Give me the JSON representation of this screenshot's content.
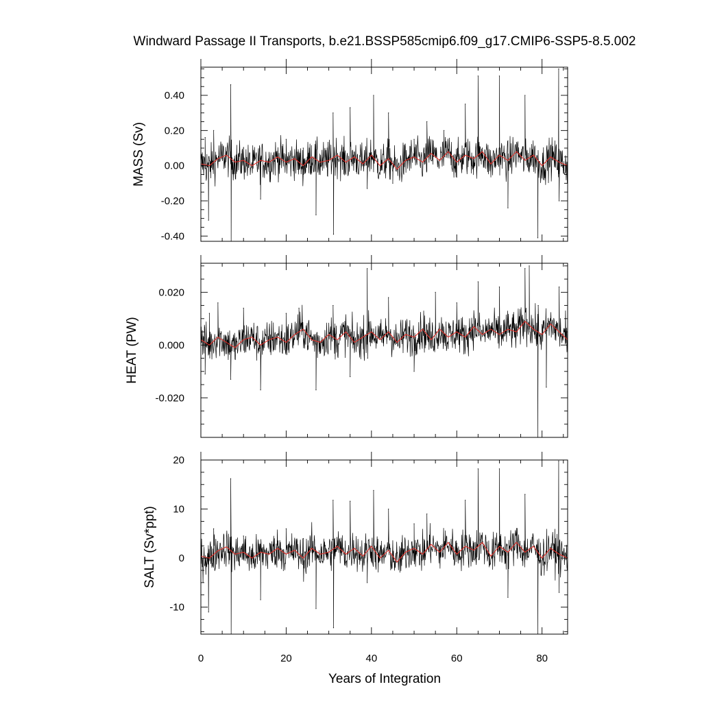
{
  "chart_data": {
    "type": "line",
    "title": "Windward Passage II Transports, b.e21.BSSP585cmip6.f09_g17.CMIP6-SSP5-8.5.002",
    "xlabel": "Years of Integration",
    "xlim": [
      0,
      86
    ],
    "x_ticks": [
      "0",
      "20",
      "40",
      "60",
      "80"
    ],
    "colors": {
      "raw": "#000000",
      "smoothed": "#e0302a",
      "frame": "#000000"
    },
    "grid": false,
    "panels": [
      {
        "ylabel": "MASS (Sv)",
        "ylim": [
          -0.43,
          0.56
        ],
        "y_ticks": [
          -0.4,
          -0.2,
          0.0,
          0.2,
          0.4
        ],
        "y_tick_labels": [
          "-0.40",
          "-0.20",
          "0.00",
          "0.20",
          "0.40"
        ],
        "series": [
          {
            "x": [
              0,
              1,
              1.8,
              3,
              5,
              7,
              7.1,
              10,
              14,
              20,
              24,
              27,
              31,
              31.1,
              35,
              39,
              40.5,
              44,
              45,
              50,
              53,
              57,
              60,
              62,
              65,
              66,
              70,
              72,
              76,
              79,
              83.9,
              84,
              86
            ],
            "y": [
              0.02,
              0.16,
              -0.31,
              0.2,
              0.05,
              0.46,
              -0.43,
              0.1,
              -0.19,
              0.15,
              0.1,
              -0.28,
              0.3,
              -0.39,
              0.33,
              -0.13,
              0.4,
              0.3,
              -0.1,
              0.15,
              0.25,
              0.2,
              0.05,
              0.35,
              0.51,
              0.1,
              0.51,
              -0.24,
              0.4,
              -0.41,
              0.55,
              -0.2,
              0.0
            ]
          },
          {
            "x": [
              0,
              2,
              4,
              6,
              8,
              10,
              12,
              14,
              16,
              18,
              20,
              22,
              24,
              26,
              28,
              30,
              32,
              34,
              36,
              38,
              40,
              42,
              44,
              46,
              48,
              50,
              52,
              54,
              56,
              58,
              60,
              62,
              64,
              66,
              68,
              70,
              72,
              74,
              76,
              78,
              80,
              82,
              84,
              86
            ],
            "y": [
              0.01,
              0.0,
              0.04,
              0.06,
              0.02,
              0.03,
              0.0,
              0.03,
              0.02,
              0.05,
              0.02,
              0.04,
              0.0,
              0.05,
              0.02,
              0.03,
              0.06,
              0.02,
              0.05,
              0.01,
              0.06,
              0.0,
              0.04,
              -0.02,
              0.03,
              0.05,
              0.02,
              0.07,
              0.03,
              0.08,
              0.02,
              0.06,
              0.04,
              0.08,
              0.01,
              0.06,
              0.03,
              0.08,
              0.03,
              0.06,
              0.0,
              0.05,
              0.02,
              0.0
            ]
          }
        ]
      },
      {
        "ylabel": "HEAT (PW)",
        "ylim": [
          -0.035,
          0.031
        ],
        "y_ticks": [
          -0.02,
          0.0,
          0.02
        ],
        "y_tick_labels": [
          "-0.020",
          "0.000",
          "0.020"
        ],
        "series": [
          {
            "x": [
              0,
              1,
              2,
              4,
              7,
              10,
              14,
              20,
              23,
              27,
              31,
              35,
              39,
              39.1,
              44,
              50,
              55,
              60,
              65,
              70,
              76,
              77,
              79,
              79.1,
              81,
              84,
              86
            ],
            "y": [
              0.001,
              -0.011,
              0.012,
              0.016,
              -0.013,
              0.014,
              -0.017,
              0.012,
              0.014,
              -0.017,
              0.015,
              -0.012,
              0.029,
              -0.005,
              0.018,
              -0.01,
              0.02,
              0.016,
              0.024,
              0.022,
              0.029,
              0.03,
              -0.035,
              0.015,
              -0.016,
              0.022,
              -0.005
            ]
          },
          {
            "x": [
              0,
              2,
              4,
              6,
              8,
              10,
              12,
              14,
              16,
              18,
              20,
              22,
              24,
              26,
              28,
              30,
              32,
              34,
              36,
              38,
              40,
              42,
              44,
              46,
              48,
              50,
              52,
              54,
              56,
              58,
              60,
              62,
              64,
              66,
              68,
              70,
              72,
              74,
              76,
              78,
              80,
              82,
              84,
              86
            ],
            "y": [
              0.002,
              0.0,
              0.003,
              0.001,
              -0.001,
              0.002,
              0.003,
              0.0,
              0.002,
              0.003,
              0.001,
              0.004,
              0.006,
              0.002,
              0.001,
              0.004,
              0.002,
              0.005,
              0.001,
              0.003,
              0.005,
              0.002,
              0.005,
              0.001,
              0.004,
              0.003,
              0.006,
              0.002,
              0.006,
              0.003,
              0.005,
              0.003,
              0.007,
              0.004,
              0.006,
              0.004,
              0.006,
              0.005,
              0.009,
              0.006,
              0.004,
              0.008,
              0.005,
              0.002
            ]
          }
        ]
      },
      {
        "ylabel": "SALT (Sv*ppt)",
        "ylim": [
          -15.5,
          20
        ],
        "y_ticks": [
          -10,
          0,
          10,
          20
        ],
        "y_tick_labels": [
          "-10",
          "0",
          "10",
          "20"
        ],
        "series": [
          {
            "x": [
              0,
              1.8,
              3,
              7,
              7.1,
              10,
              14,
              20,
              24,
              27,
              31,
              31.1,
              35,
              39,
              40.5,
              44,
              50,
              53,
              60,
              62,
              65,
              66,
              70,
              72,
              76,
              79,
              83.9,
              84,
              86
            ],
            "y": [
              0.5,
              -11,
              6,
              16.2,
              -15.5,
              4.5,
              -8.5,
              6,
              4,
              -10.3,
              11.8,
              -14.2,
              11.6,
              -5,
              13.8,
              10,
              7,
              9,
              3,
              11.8,
              18.2,
              3,
              18.2,
              -8,
              13,
              -15.5,
              19.8,
              -7,
              0
            ]
          },
          {
            "x": [
              0,
              2,
              4,
              6,
              8,
              10,
              12,
              14,
              16,
              18,
              20,
              22,
              24,
              26,
              28,
              30,
              32,
              34,
              36,
              38,
              40,
              42,
              44,
              46,
              48,
              50,
              52,
              54,
              56,
              58,
              60,
              62,
              64,
              66,
              68,
              70,
              72,
              74,
              76,
              78,
              80,
              82,
              84,
              86
            ],
            "y": [
              0.4,
              0.0,
              1.5,
              2.3,
              0.8,
              1.2,
              0.0,
              1.2,
              0.8,
              2.0,
              0.8,
              1.6,
              0.0,
              2.0,
              0.8,
              1.2,
              2.4,
              0.8,
              2.0,
              0.4,
              2.4,
              0.0,
              1.6,
              -0.8,
              1.2,
              2.0,
              0.8,
              2.8,
              1.2,
              3.2,
              0.8,
              2.4,
              1.6,
              3.2,
              0.4,
              2.4,
              1.2,
              3.2,
              1.2,
              2.4,
              0.0,
              2.0,
              0.8,
              0.0
            ]
          }
        ]
      }
    ]
  }
}
